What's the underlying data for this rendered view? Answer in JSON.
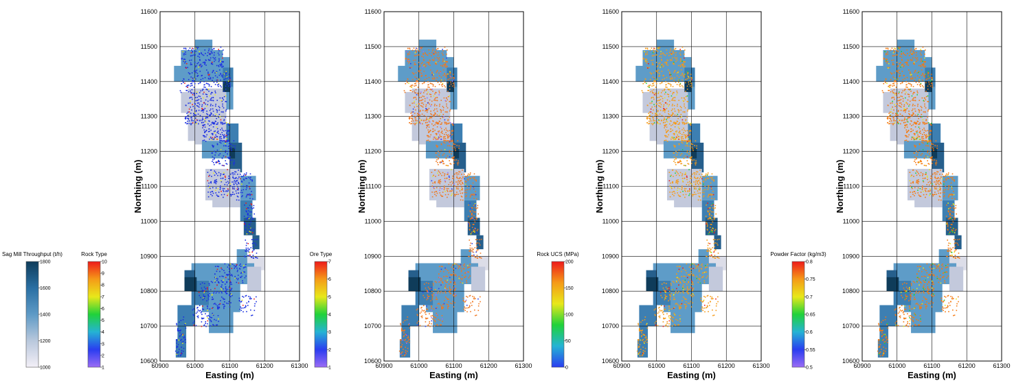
{
  "colorbars": [
    {
      "title": "Sag Mill Throughput (t/h)",
      "min": 1000,
      "max": 1800,
      "ticks": [
        "1000",
        "1200",
        "1400",
        "1600",
        "1800"
      ],
      "colors": [
        "#f3eff7",
        "#b9c8dc",
        "#5e9ac6",
        "#2a6fa3",
        "#0f3c5a"
      ]
    },
    {
      "title": "Rock Type",
      "min": 1,
      "max": 10,
      "ticks": [
        "1",
        "2",
        "3",
        "4",
        "5",
        "6",
        "7",
        "8",
        "9",
        "10"
      ],
      "colors": [
        "#9b6cf5",
        "#2a3df0",
        "#25b3d4",
        "#20d23a",
        "#e8e81a",
        "#f59a18",
        "#ee1a1a"
      ]
    },
    {
      "title": "Ore Type",
      "min": 1,
      "max": 7,
      "ticks": [
        "1",
        "2",
        "3",
        "4",
        "5",
        "6",
        "7"
      ],
      "colors": [
        "#9b6cf5",
        "#2a3df0",
        "#25b3d4",
        "#20d23a",
        "#e8e81a",
        "#f59a18",
        "#ee1a1a"
      ]
    },
    {
      "title": "Rock UCS (MPa)",
      "min": 0,
      "max": 200,
      "ticks": [
        "0",
        "50",
        "100",
        "150",
        "200"
      ],
      "colors": [
        "#2a3df0",
        "#25b3d4",
        "#20d23a",
        "#e8e81a",
        "#f59a18",
        "#ee1a1a"
      ]
    },
    {
      "title": "Powder Factor (kg/m3)",
      "min": 0.5,
      "max": 0.8,
      "ticks": [
        "0.5",
        "0.55",
        "0.6",
        "0.65",
        "0.7",
        "0.75",
        "0.8"
      ],
      "colors": [
        "#9b6cf5",
        "#2a3df0",
        "#25b3d4",
        "#20d23a",
        "#e8e81a",
        "#f59a18",
        "#ee1a1a"
      ]
    }
  ],
  "chart_data": [
    {
      "type": "heatmap",
      "xlabel": "Easting (m)",
      "ylabel": "Northing (m)",
      "xlim": [
        60900,
        61300
      ],
      "ylim": [
        10600,
        11600
      ],
      "xticks": [
        "60900",
        "61000",
        "61100",
        "61200",
        "61300"
      ],
      "yticks": [
        "10600",
        "10700",
        "10800",
        "10900",
        "11000",
        "11100",
        "11200",
        "11300",
        "11400",
        "11500",
        "11600"
      ],
      "background_variable": "Sag Mill Throughput (t/h)",
      "point_variable": "Rock Type",
      "point_color": "#1a2fe0"
    },
    {
      "type": "heatmap",
      "xlabel": "Easting (m)",
      "ylabel": "Northing (m)",
      "xlim": [
        60900,
        61300
      ],
      "ylim": [
        10600,
        11600
      ],
      "xticks": [
        "60900",
        "61000",
        "61100",
        "61200",
        "61300"
      ],
      "yticks": [
        "10600",
        "10700",
        "10800",
        "10900",
        "11000",
        "11100",
        "11200",
        "11300",
        "11400",
        "11500",
        "11600"
      ],
      "background_variable": "Sag Mill Throughput (t/h)",
      "point_variable": "Ore Type",
      "point_color": "#f07820"
    },
    {
      "type": "heatmap",
      "xlabel": "Easting (m)",
      "ylabel": "Northing (m)",
      "xlim": [
        60900,
        61300
      ],
      "ylim": [
        10600,
        11600
      ],
      "xticks": [
        "60900",
        "61000",
        "61100",
        "61200",
        "61300"
      ],
      "yticks": [
        "10600",
        "10700",
        "10800",
        "10900",
        "11000",
        "11100",
        "11200",
        "11300",
        "11400",
        "11500",
        "11600"
      ],
      "background_variable": "Sag Mill Throughput (t/h)",
      "point_variable": "Rock UCS (MPa)",
      "point_color": "#f59a18"
    },
    {
      "type": "heatmap",
      "xlabel": "Easting (m)",
      "ylabel": "Northing (m)",
      "xlim": [
        60900,
        61300
      ],
      "ylim": [
        10600,
        11600
      ],
      "xticks": [
        "60900",
        "61000",
        "61100",
        "61200",
        "61300"
      ],
      "yticks": [
        "10600",
        "10700",
        "10800",
        "10900",
        "11000",
        "11100",
        "11200",
        "11300",
        "11400",
        "11500",
        "11600"
      ],
      "background_variable": "Sag Mill Throughput (t/h)",
      "point_variable": "Powder Factor (kg/m3)",
      "point_color": "#f57a10"
    }
  ]
}
